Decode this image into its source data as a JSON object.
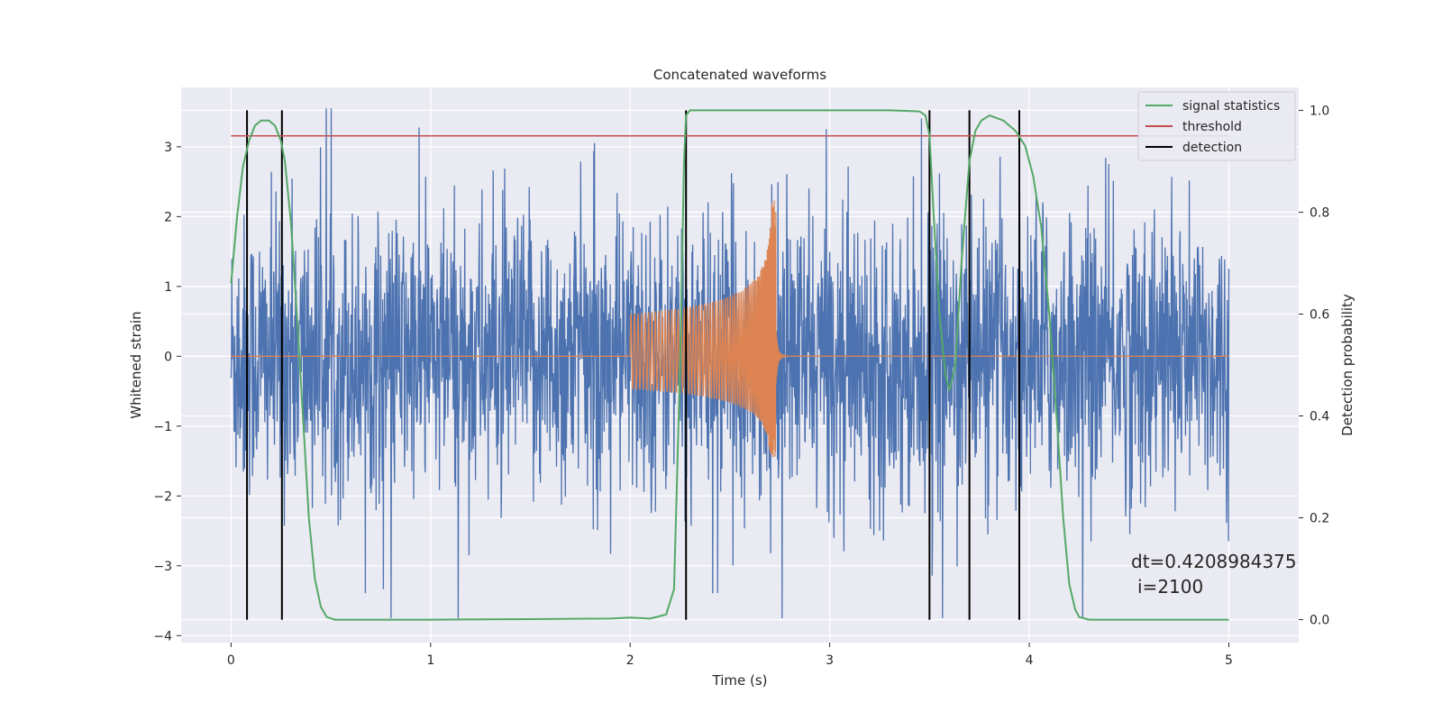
{
  "chart_data": {
    "type": "line",
    "title": "Concatenated waveforms",
    "xlabel": "Time (s)",
    "ylabel": "Whitened strain",
    "y2label": "Detection probability",
    "xlim": [
      -0.25,
      5.35
    ],
    "ylim": [
      -4.1,
      3.85
    ],
    "y2lim": [
      -0.045,
      1.045
    ],
    "xticks": [
      0,
      1,
      2,
      3,
      4,
      5
    ],
    "yticks": [
      -4,
      -3,
      -2,
      -1,
      0,
      1,
      2,
      3
    ],
    "y2ticks": [
      0.0,
      0.2,
      0.4,
      0.6,
      0.8,
      1.0
    ],
    "xtick_labels": [
      "0",
      "1",
      "2",
      "3",
      "4",
      "5"
    ],
    "ytick_labels": [
      "−4",
      "−3",
      "−2",
      "−1",
      "0",
      "1",
      "2",
      "3"
    ],
    "y2tick_labels": [
      "0.0",
      "0.2",
      "0.4",
      "0.6",
      "0.8",
      "1.0"
    ],
    "grid": true,
    "legend_position": "top-right",
    "annotations": [
      "dt=0.4208984375",
      "i=2100"
    ],
    "series": [
      {
        "name": "",
        "color": "#4c72b0",
        "description_values": "noise strain, x 0 to 5 s, amplitude mostly within about ±2.8 with spikes up to about 3.5 and down to about -3.7",
        "x_range": [
          0,
          5
        ],
        "approx_peak": 3.55,
        "approx_trough": -3.75
      },
      {
        "name": "",
        "color": "#dd8452",
        "x_range": [
          0,
          5
        ],
        "chirp_start": 2.0,
        "chirp_peak_time": 2.72,
        "chirp_peak_amplitude": 2.25,
        "chirp_min_amplitude": -1.45,
        "values_outside_chirp": 0
      },
      {
        "name": "signal statistics",
        "color": "#55a868",
        "axis": "right",
        "x": [
          0,
          0.03,
          0.06,
          0.09,
          0.12,
          0.15,
          0.19,
          0.22,
          0.25,
          0.27,
          0.3,
          0.33,
          0.36,
          0.39,
          0.42,
          0.45,
          0.48,
          0.52,
          1.0,
          1.5,
          1.9,
          2.0,
          2.1,
          2.18,
          2.22,
          2.25,
          2.27,
          2.28,
          2.3,
          2.35,
          2.5,
          3.0,
          3.3,
          3.45,
          3.48,
          3.5,
          3.52,
          3.55,
          3.58,
          3.6,
          3.63,
          3.66,
          3.7,
          3.73,
          3.76,
          3.8,
          3.87,
          3.93,
          3.98,
          4.02,
          4.06,
          4.1,
          4.14,
          4.17,
          4.2,
          4.23,
          4.25,
          4.3,
          5.0
        ],
        "y": [
          0.66,
          0.79,
          0.89,
          0.94,
          0.97,
          0.98,
          0.98,
          0.97,
          0.94,
          0.9,
          0.78,
          0.6,
          0.4,
          0.2,
          0.08,
          0.025,
          0.005,
          0.0,
          0.0,
          0.001,
          0.002,
          0.004,
          0.002,
          0.01,
          0.06,
          0.5,
          0.9,
          0.99,
          1.0,
          1.0,
          1.0,
          1.0,
          1.0,
          0.998,
          0.99,
          0.95,
          0.8,
          0.6,
          0.48,
          0.45,
          0.5,
          0.7,
          0.9,
          0.96,
          0.98,
          0.99,
          0.98,
          0.96,
          0.93,
          0.87,
          0.77,
          0.6,
          0.38,
          0.2,
          0.07,
          0.02,
          0.005,
          0.0,
          0.0
        ]
      },
      {
        "name": "threshold",
        "color": "#c44e52",
        "axis": "right",
        "x": [
          0,
          5
        ],
        "y": [
          0.95,
          0.95
        ]
      },
      {
        "name": "detection",
        "color": "#000000",
        "axis": "right",
        "type": "vlines",
        "x": [
          0.08,
          0.255,
          2.28,
          3.5,
          3.7,
          3.95
        ],
        "ymin": 0,
        "ymax": 1
      }
    ]
  }
}
